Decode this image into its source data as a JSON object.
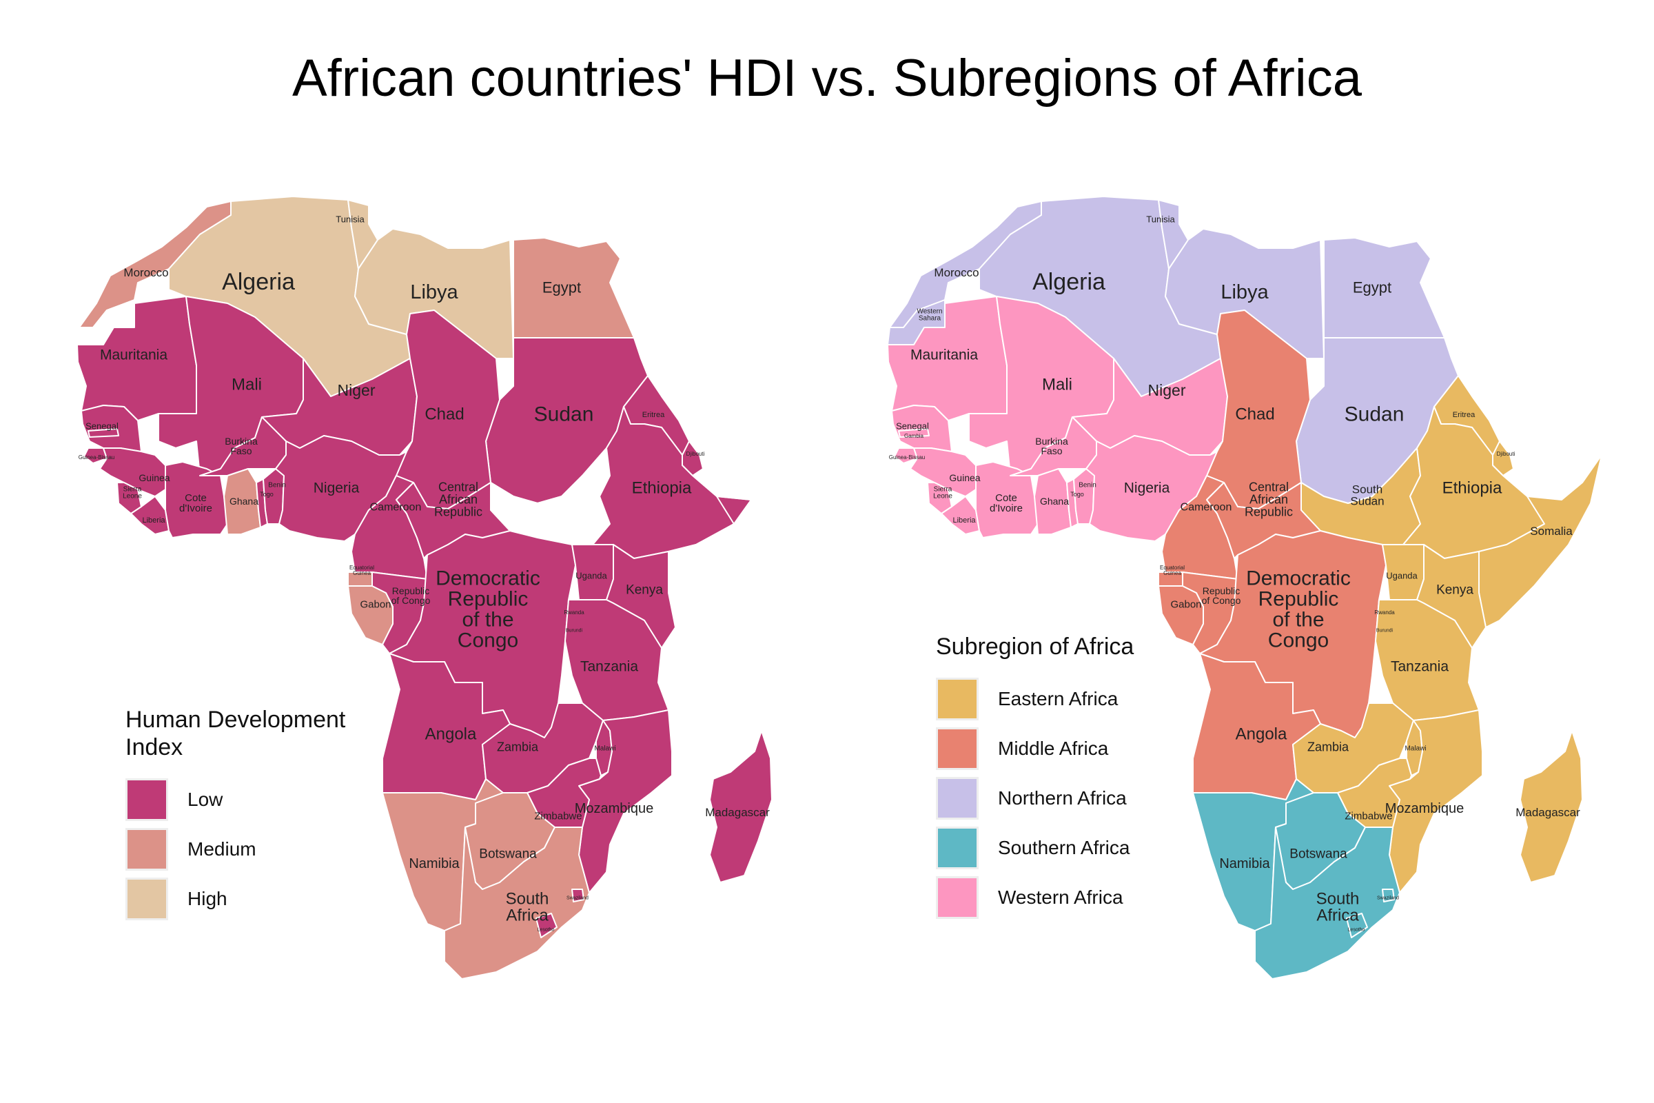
{
  "title": "African countries' HDI vs. Subregions of Africa",
  "hdi_legend": {
    "title_line1": "Human Development",
    "title_line2": "Index",
    "items": [
      {
        "label": "Low",
        "color": "#bf3a76"
      },
      {
        "label": "Medium",
        "color": "#dc9288"
      },
      {
        "label": "High",
        "color": "#e3c6a3"
      }
    ]
  },
  "region_legend": {
    "title": "Subregion of Africa",
    "items": [
      {
        "label": "Eastern Africa",
        "color": "#e8b961"
      },
      {
        "label": "Middle Africa",
        "color": "#e88270"
      },
      {
        "label": "Northern Africa",
        "color": "#c7c0e8"
      },
      {
        "label": "Southern Africa",
        "color": "#5eb8c5"
      },
      {
        "label": "Western Africa",
        "color": "#fd96c0"
      }
    ]
  },
  "countries": [
    {
      "id": "morocco",
      "name": "Morocco",
      "hdi": "Medium",
      "region": "Northern Africa"
    },
    {
      "id": "wsahara",
      "name": "Western Sahara",
      "hdi": "",
      "region": "Northern Africa"
    },
    {
      "id": "algeria",
      "name": "Algeria",
      "hdi": "High",
      "region": "Northern Africa"
    },
    {
      "id": "tunisia",
      "name": "Tunisia",
      "hdi": "High",
      "region": "Northern Africa"
    },
    {
      "id": "libya",
      "name": "Libya",
      "hdi": "High",
      "region": "Northern Africa"
    },
    {
      "id": "egypt",
      "name": "Egypt",
      "hdi": "Medium",
      "region": "Northern Africa"
    },
    {
      "id": "sudan",
      "name": "Sudan",
      "hdi": "Low",
      "region": "Northern Africa"
    },
    {
      "id": "ssudan",
      "name": "South Sudan",
      "hdi": "",
      "region": "Eastern Africa"
    },
    {
      "id": "mauritania",
      "name": "Mauritania",
      "hdi": "Low",
      "region": "Western Africa"
    },
    {
      "id": "mali",
      "name": "Mali",
      "hdi": "Low",
      "region": "Western Africa"
    },
    {
      "id": "niger",
      "name": "Niger",
      "hdi": "Low",
      "region": "Western Africa"
    },
    {
      "id": "chad",
      "name": "Chad",
      "hdi": "Low",
      "region": "Middle Africa"
    },
    {
      "id": "eritrea",
      "name": "Eritrea",
      "hdi": "Low",
      "region": "Eastern Africa"
    },
    {
      "id": "djibouti",
      "name": "Djibouti",
      "hdi": "Low",
      "region": "Eastern Africa"
    },
    {
      "id": "ethiopia",
      "name": "Ethiopia",
      "hdi": "Low",
      "region": "Eastern Africa"
    },
    {
      "id": "somalia",
      "name": "Somalia",
      "hdi": "",
      "region": "Eastern Africa"
    },
    {
      "id": "senegal",
      "name": "Senegal",
      "hdi": "Low",
      "region": "Western Africa"
    },
    {
      "id": "gambia",
      "name": "Gambia",
      "hdi": "Low",
      "region": "Western Africa"
    },
    {
      "id": "gbissau",
      "name": "Guinea-Bissau",
      "hdi": "Low",
      "region": "Western Africa"
    },
    {
      "id": "guinea",
      "name": "Guinea",
      "hdi": "Low",
      "region": "Western Africa"
    },
    {
      "id": "sleone",
      "name": "Sierra Leone",
      "hdi": "Low",
      "region": "Western Africa"
    },
    {
      "id": "liberia",
      "name": "Liberia",
      "hdi": "Low",
      "region": "Western Africa"
    },
    {
      "id": "civoire",
      "name": "Cote d'Ivoire",
      "hdi": "Low",
      "region": "Western Africa"
    },
    {
      "id": "burkina",
      "name": "Burkina Faso",
      "hdi": "Low",
      "region": "Western Africa"
    },
    {
      "id": "ghana",
      "name": "Ghana",
      "hdi": "Medium",
      "region": "Western Africa"
    },
    {
      "id": "togo",
      "name": "Togo",
      "hdi": "Low",
      "region": "Western Africa"
    },
    {
      "id": "benin",
      "name": "Benin",
      "hdi": "Low",
      "region": "Western Africa"
    },
    {
      "id": "nigeria",
      "name": "Nigeria",
      "hdi": "Low",
      "region": "Western Africa"
    },
    {
      "id": "cameroon",
      "name": "Cameroon",
      "hdi": "Low",
      "region": "Middle Africa"
    },
    {
      "id": "car",
      "name": "Central African Republic",
      "hdi": "Low",
      "region": "Middle Africa"
    },
    {
      "id": "eqguinea",
      "name": "Equatorial Guinea",
      "hdi": "Medium",
      "region": "Middle Africa"
    },
    {
      "id": "gabon",
      "name": "Gabon",
      "hdi": "Medium",
      "region": "Middle Africa"
    },
    {
      "id": "congo",
      "name": "Republic of Congo",
      "hdi": "Low",
      "region": "Middle Africa"
    },
    {
      "id": "drc",
      "name": "Democratic Republic of the Congo",
      "hdi": "Low",
      "region": "Middle Africa"
    },
    {
      "id": "uganda",
      "name": "Uganda",
      "hdi": "Low",
      "region": "Eastern Africa"
    },
    {
      "id": "kenya",
      "name": "Kenya",
      "hdi": "Low",
      "region": "Eastern Africa"
    },
    {
      "id": "rwanda",
      "name": "Rwanda",
      "hdi": "Low",
      "region": "Eastern Africa"
    },
    {
      "id": "burundi",
      "name": "Burundi",
      "hdi": "Low",
      "region": "Eastern Africa"
    },
    {
      "id": "tanzania",
      "name": "Tanzania",
      "hdi": "Low",
      "region": "Eastern Africa"
    },
    {
      "id": "angola",
      "name": "Angola",
      "hdi": "Low",
      "region": "Middle Africa"
    },
    {
      "id": "zambia",
      "name": "Zambia",
      "hdi": "Low",
      "region": "Eastern Africa"
    },
    {
      "id": "malawi",
      "name": "Malawi",
      "hdi": "Low",
      "region": "Eastern Africa"
    },
    {
      "id": "mozambique",
      "name": "Mozambique",
      "hdi": "Low",
      "region": "Eastern Africa"
    },
    {
      "id": "zimbabwe",
      "name": "Zimbabwe",
      "hdi": "Low",
      "region": "Eastern Africa"
    },
    {
      "id": "namibia",
      "name": "Namibia",
      "hdi": "Medium",
      "region": "Southern Africa"
    },
    {
      "id": "botswana",
      "name": "Botswana",
      "hdi": "Medium",
      "region": "Southern Africa"
    },
    {
      "id": "safrica",
      "name": "South Africa",
      "hdi": "Medium",
      "region": "Southern Africa"
    },
    {
      "id": "eswatini",
      "name": "Swaziland",
      "hdi": "Low",
      "region": "Southern Africa"
    },
    {
      "id": "lesotho",
      "name": "Lesotho",
      "hdi": "Low",
      "region": "Southern Africa"
    },
    {
      "id": "madagascar",
      "name": "Madagascar",
      "hdi": "Low",
      "region": "Eastern Africa"
    }
  ],
  "hdi_map_labels": {
    "morocco": [
      "Morocco"
    ],
    "algeria": [
      "Algeria"
    ],
    "tunisia": [
      "Tunisia"
    ],
    "libya": [
      "Libya"
    ],
    "egypt": [
      "Egypt"
    ],
    "sudan": [
      "Sudan"
    ],
    "mauritania": [
      "Mauritania"
    ],
    "mali": [
      "Mali"
    ],
    "niger": [
      "Niger"
    ],
    "chad": [
      "Chad"
    ],
    "eritrea": [
      "Eritrea"
    ],
    "djibouti": [
      "Djibouti"
    ],
    "ethiopia": [
      "Ethiopia"
    ],
    "senegal": [
      "Senegal"
    ],
    "gbissau": [
      "Guinea-Bissau"
    ],
    "guinea": [
      "Guinea"
    ],
    "sleone": [
      "Sierra",
      "Leone"
    ],
    "liberia": [
      "Liberia"
    ],
    "civoire": [
      "Cote",
      "d'Ivoire"
    ],
    "burkina": [
      "Burkina",
      "Faso"
    ],
    "ghana": [
      "Ghana"
    ],
    "togo": [
      "Togo"
    ],
    "benin": [
      "Benin"
    ],
    "nigeria": [
      "Nigeria"
    ],
    "cameroon": [
      "Cameroon"
    ],
    "car": [
      "Central",
      "African",
      "Republic"
    ],
    "eqguinea": [
      "Equatorial",
      "Guinea"
    ],
    "gabon": [
      "Gabon"
    ],
    "congo": [
      "Republic",
      "of Congo"
    ],
    "drc": [
      "Democratic",
      "Republic",
      "of the",
      "Congo"
    ],
    "uganda": [
      "Uganda"
    ],
    "kenya": [
      "Kenya"
    ],
    "rwanda": [
      "Rwanda"
    ],
    "burundi": [
      "Burundi"
    ],
    "tanzania": [
      "Tanzania"
    ],
    "angola": [
      "Angola"
    ],
    "zambia": [
      "Zambia"
    ],
    "malawi": [
      "Malawi"
    ],
    "mozambique": [
      "Mozambique"
    ],
    "zimbabwe": [
      "Zimbabwe"
    ],
    "namibia": [
      "Namibia"
    ],
    "botswana": [
      "Botswana"
    ],
    "safrica": [
      "South",
      "Africa"
    ],
    "eswatini": [
      "Swaziland"
    ],
    "lesotho": [
      "Lesotho"
    ],
    "madagascar": [
      "Madagascar"
    ]
  },
  "region_map_labels": {
    "morocco": [
      "Morocco"
    ],
    "wsahara": [
      "Western",
      "Sahara"
    ],
    "algeria": [
      "Algeria"
    ],
    "tunisia": [
      "Tunisia"
    ],
    "libya": [
      "Libya"
    ],
    "egypt": [
      "Egypt"
    ],
    "sudan": [
      "Sudan"
    ],
    "ssudan": [
      "South",
      "Sudan"
    ],
    "mauritania": [
      "Mauritania"
    ],
    "mali": [
      "Mali"
    ],
    "niger": [
      "Niger"
    ],
    "chad": [
      "Chad"
    ],
    "eritrea": [
      "Eritrea"
    ],
    "djibouti": [
      "Djibouti"
    ],
    "ethiopia": [
      "Ethiopia"
    ],
    "somalia": [
      "Somalia"
    ],
    "senegal": [
      "Senegal"
    ],
    "gambia": [
      "Gambia"
    ],
    "gbissau": [
      "Guinea-Bissau"
    ],
    "guinea": [
      "Guinea"
    ],
    "sleone": [
      "Sierra",
      "Leone"
    ],
    "liberia": [
      "Liberia"
    ],
    "civoire": [
      "Cote",
      "d'Ivoire"
    ],
    "burkina": [
      "Burkina",
      "Faso"
    ],
    "ghana": [
      "Ghana"
    ],
    "togo": [
      "Togo"
    ],
    "benin": [
      "Benin"
    ],
    "nigeria": [
      "Nigeria"
    ],
    "cameroon": [
      "Cameroon"
    ],
    "car": [
      "Central",
      "African",
      "Republic"
    ],
    "eqguinea": [
      "Equatorial",
      "Guinea"
    ],
    "gabon": [
      "Gabon"
    ],
    "congo": [
      "Republic",
      "of Congo"
    ],
    "drc": [
      "Democratic",
      "Republic",
      "of the",
      "Congo"
    ],
    "uganda": [
      "Uganda"
    ],
    "kenya": [
      "Kenya"
    ],
    "rwanda": [
      "Rwanda"
    ],
    "burundi": [
      "Burundi"
    ],
    "tanzania": [
      "Tanzania"
    ],
    "angola": [
      "Angola"
    ],
    "zambia": [
      "Zambia"
    ],
    "malawi": [
      "Malawi"
    ],
    "mozambique": [
      "Mozambique"
    ],
    "zimbabwe": [
      "Zimbabwe"
    ],
    "namibia": [
      "Namibia"
    ],
    "botswana": [
      "Botswana"
    ],
    "safrica": [
      "South",
      "Africa"
    ],
    "eswatini": [
      "Swaziland"
    ],
    "lesotho": [
      "Lesotho"
    ],
    "madagascar": [
      "Madagascar"
    ]
  }
}
